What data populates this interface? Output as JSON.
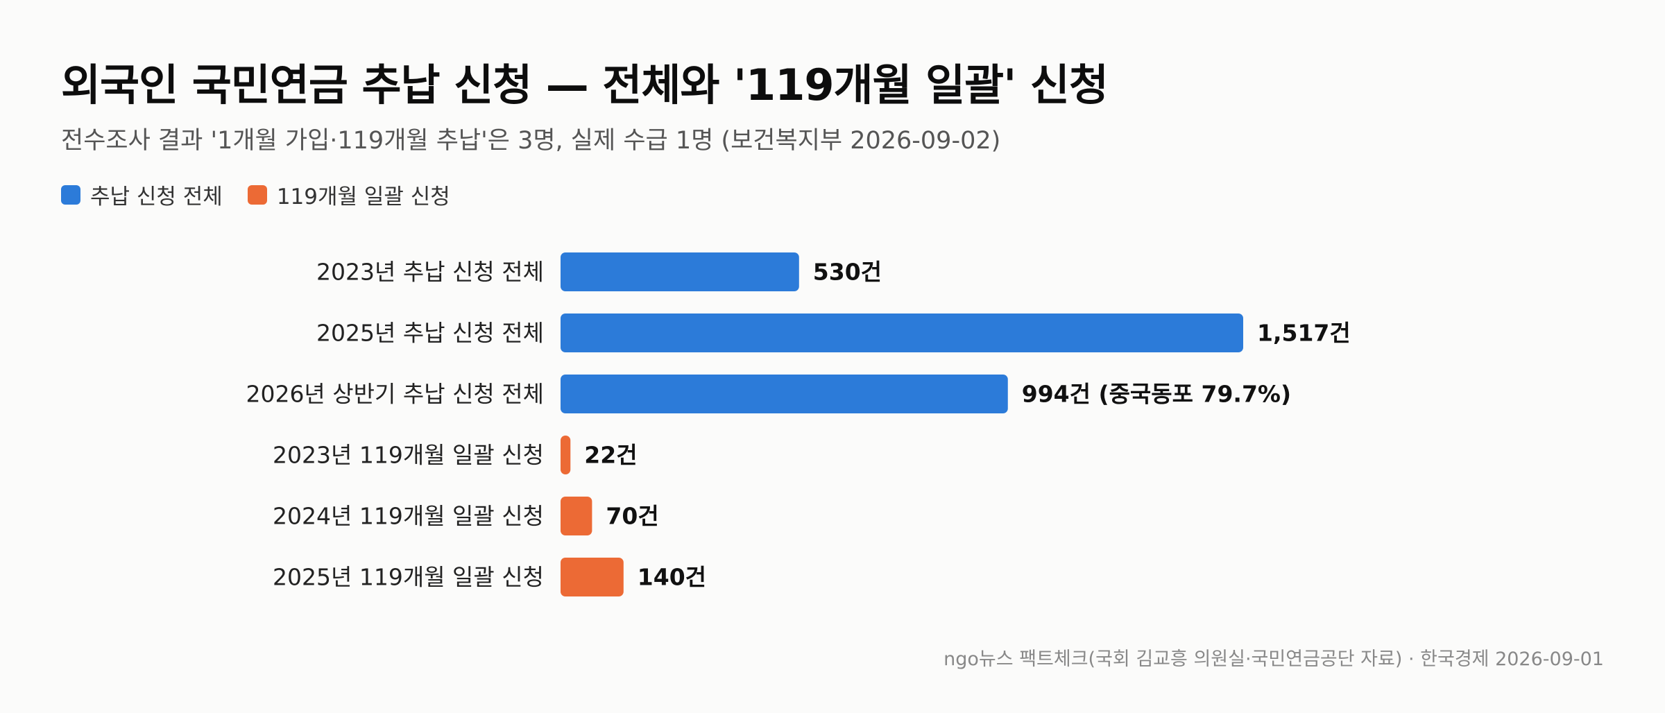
{
  "title": "외국인 국민연금 추납 신청 — 전체와 '119개월 일괄' 신청",
  "subtitle": "전수조사 결과 '1개월 가입·119개월 추납'은 3명, 실제 수급 1명 (보건복지부 2026-09-02)",
  "legend": [
    {
      "label": "추납 신청 전체",
      "color": "#2c7bd9"
    },
    {
      "label": "119개월 일괄 신청",
      "color": "#ec6a35"
    }
  ],
  "source": "ngo뉴스 팩트체크(국회 김교흥 의원실·국민연금공단 자료) · 한국경제 2026-09-01",
  "chart_data": {
    "type": "bar",
    "orientation": "horizontal",
    "categories": [
      "2023년 추납 신청 전체",
      "2025년 추납 신청 전체",
      "2026년 상반기 추납 신청 전체",
      "2023년 119개월 일괄 신청",
      "2024년 119개월 일괄 신청",
      "2025년 119개월 일괄 신청"
    ],
    "values": [
      530,
      1517,
      994,
      22,
      70,
      140
    ],
    "value_labels": [
      "530건",
      "1,517건",
      "994건 (중국동포 79.7%)",
      "22건",
      "70건",
      "140건"
    ],
    "series_index": [
      0,
      0,
      0,
      1,
      1,
      1
    ],
    "colors": [
      "#2c7bd9",
      "#ec6a35"
    ],
    "xlim": [
      0,
      1517
    ],
    "grid": false,
    "legend_position": "top-left"
  }
}
